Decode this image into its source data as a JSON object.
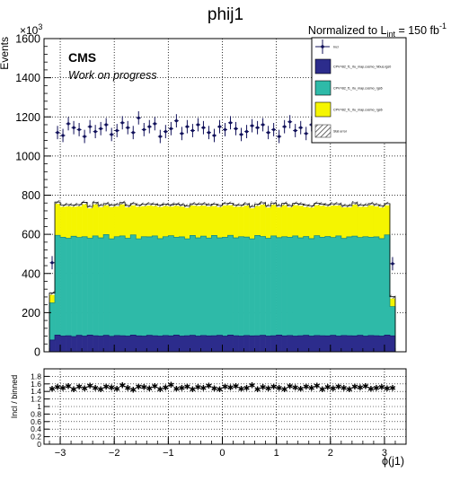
{
  "chart_data": [
    {
      "type": "area",
      "title": "phij1",
      "lumi_label": "Normalized to L",
      "lumi_sub": "int",
      "lumi_value": " = 150 fb",
      "lumi_sup": "-1",
      "experiment": "CMS",
      "status": "Work on progress",
      "ylabel": "Events",
      "y_multiplier": "×10",
      "y_multiplier_exp": "3",
      "ylim": [
        0,
        1600
      ],
      "xlim": [
        -3.3,
        3.4
      ],
      "yticks": [
        "0",
        "200",
        "400",
        "600",
        "800",
        "1000",
        "1200",
        "1400",
        "1600"
      ],
      "xticks": [
        "−3",
        "−2",
        "−1",
        "0",
        "1",
        "2",
        "3"
      ],
      "grid": true,
      "legend_position": "top-right",
      "legend": [
        {
          "label": "Incl",
          "kind": "data"
        },
        {
          "label": "CPV=B2_f1_rtu_map.cosmo_hibus.rgs0",
          "kind": "fill",
          "color": "#2c2c8c"
        },
        {
          "label": "CPV=B2_f1_rtu_map.cosmo_rgs6",
          "kind": "fill",
          "color": "#2ebaa8"
        },
        {
          "label": "CPV=B2_f1_rtu_map.cosmo_rgs6",
          "kind": "fill",
          "color": "#f5f500"
        },
        {
          "label": "Stat error",
          "kind": "hatch"
        }
      ],
      "stack_edges": [
        -3.2,
        3.2
      ],
      "stack_values": {
        "navy": [
          60,
          85,
          80,
          82,
          78,
          84,
          80,
          85,
          82,
          80,
          84,
          79,
          83,
          82,
          80,
          85,
          81,
          80,
          84,
          82,
          80,
          83,
          81,
          85,
          80,
          82,
          84,
          80,
          83,
          81,
          82,
          84,
          80,
          85,
          82,
          80,
          83,
          81,
          82,
          84,
          80,
          82,
          85,
          81,
          83,
          80,
          82,
          84,
          80,
          83,
          82,
          81,
          84,
          80,
          83,
          82,
          81,
          84,
          80,
          83,
          82,
          80,
          85,
          81
        ],
        "teal": [
          190,
          510,
          505,
          498,
          512,
          500,
          508,
          495,
          510,
          502,
          515,
          498,
          505,
          510,
          500,
          512,
          496,
          508,
          503,
          510,
          498,
          505,
          512,
          500,
          507,
          495,
          510,
          502,
          508,
          500,
          512,
          498,
          505,
          510,
          500,
          508,
          503,
          496,
          512,
          505,
          500,
          510,
          498,
          507,
          502,
          512,
          500,
          505,
          498,
          510,
          503,
          508,
          500,
          512,
          496,
          505,
          510,
          500,
          508,
          502,
          505,
          498,
          512,
          150
        ],
        "yellow": [
          50,
          170,
          165,
          172,
          160,
          168,
          175,
          162,
          170,
          166,
          158,
          172,
          164,
          170,
          167,
          160,
          173,
          165,
          169,
          162,
          171,
          166,
          158,
          170,
          164,
          168,
          162,
          172,
          165,
          170,
          160,
          166,
          172,
          163,
          168,
          162,
          170,
          165,
          160,
          172,
          166,
          168,
          164,
          170,
          162,
          166,
          173,
          160,
          168,
          165,
          170,
          162,
          172,
          164,
          168,
          160,
          170,
          166,
          162,
          172,
          165,
          168,
          160,
          50
        ]
      },
      "data_points": {
        "x": [
          -3.15,
          -3.05,
          -2.95,
          -2.85,
          -2.75,
          -2.65,
          -2.55,
          -2.45,
          -2.35,
          -2.25,
          -2.15,
          -2.05,
          -1.95,
          -1.85,
          -1.75,
          -1.65,
          -1.55,
          -1.45,
          -1.35,
          -1.25,
          -1.15,
          -1.05,
          -0.95,
          -0.85,
          -0.75,
          -0.65,
          -0.55,
          -0.45,
          -0.35,
          -0.25,
          -0.15,
          -0.05,
          0.05,
          0.15,
          0.25,
          0.35,
          0.45,
          0.55,
          0.65,
          0.75,
          0.85,
          0.95,
          1.05,
          1.15,
          1.25,
          1.35,
          1.45,
          1.55,
          1.65,
          1.75,
          1.85,
          1.95,
          2.05,
          2.15,
          2.25,
          2.35,
          2.45,
          2.55,
          2.65,
          2.75,
          2.85,
          2.95,
          3.05,
          3.15
        ],
        "y": [
          455,
          1120,
          1105,
          1165,
          1145,
          1135,
          1100,
          1150,
          1125,
          1140,
          1160,
          1110,
          1130,
          1170,
          1145,
          1120,
          1195,
          1135,
          1150,
          1165,
          1100,
          1125,
          1140,
          1180,
          1115,
          1150,
          1130,
          1160,
          1145,
          1120,
          1105,
          1150,
          1135,
          1170,
          1140,
          1110,
          1125,
          1155,
          1145,
          1160,
          1120,
          1135,
          1100,
          1150,
          1175,
          1130,
          1145,
          1115,
          1160,
          1130,
          1150,
          1120,
          1140,
          1165,
          1135,
          1110,
          1155,
          1180,
          1130,
          1145,
          1165,
          1120,
          1140,
          450
        ],
        "yerr": 34
      }
    },
    {
      "type": "scatter",
      "ylabel": "Incl / binned",
      "xlabel": "ϕ(j1)",
      "ylim": [
        0,
        2
      ],
      "xlim": [
        -3.3,
        3.4
      ],
      "yticks": [
        "0",
        "0.2",
        "0.4",
        "0.6",
        "0.8",
        "1",
        "1.2",
        "1.4",
        "1.6",
        "1.8"
      ],
      "xticks": [
        "−3",
        "−2",
        "−1",
        "0",
        "1",
        "2",
        "3"
      ],
      "grid": true,
      "ratio": [
        1.48,
        1.52,
        1.5,
        1.55,
        1.47,
        1.53,
        1.49,
        1.56,
        1.5,
        1.46,
        1.54,
        1.51,
        1.48,
        1.57,
        1.5,
        1.45,
        1.53,
        1.52,
        1.49,
        1.55,
        1.47,
        1.51,
        1.58,
        1.48,
        1.5,
        1.54,
        1.46,
        1.52,
        1.5,
        1.56,
        1.49,
        1.47,
        1.53,
        1.51,
        1.55,
        1.48,
        1.5,
        1.57,
        1.46,
        1.52,
        1.49,
        1.54,
        1.5,
        1.47,
        1.55,
        1.51,
        1.48,
        1.53,
        1.5,
        1.56,
        1.47,
        1.52,
        1.49,
        1.54,
        1.5,
        1.46,
        1.53,
        1.51,
        1.55,
        1.48,
        1.5,
        1.52,
        1.49,
        1.5
      ]
    }
  ]
}
